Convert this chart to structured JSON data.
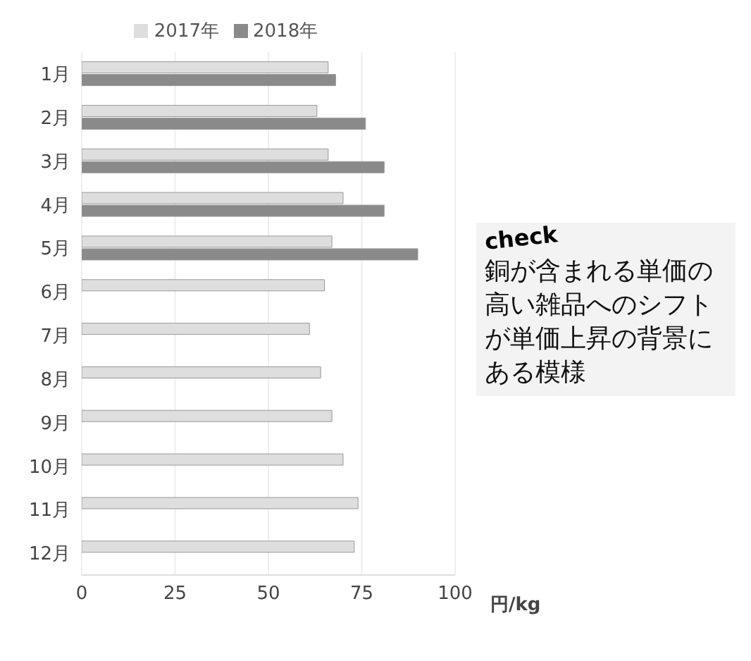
{
  "chart_data": {
    "type": "bar",
    "orientation": "horizontal",
    "categories": [
      "1月",
      "2月",
      "3月",
      "4月",
      "5月",
      "6月",
      "7月",
      "8月",
      "9月",
      "10月",
      "11月",
      "12月"
    ],
    "series": [
      {
        "name": "2017年",
        "color": "#dedede",
        "values": [
          66,
          63,
          66,
          70,
          67,
          65,
          61,
          64,
          67,
          70,
          74,
          73
        ]
      },
      {
        "name": "2018年",
        "color": "#8a8a8a",
        "values": [
          68,
          76,
          81,
          81,
          90,
          null,
          null,
          null,
          null,
          null,
          null,
          null
        ]
      }
    ],
    "xlim": [
      0,
      100
    ],
    "xticks": [
      0,
      25,
      50,
      75,
      100
    ],
    "xlabel": "円/kg",
    "grid": "x",
    "legend": "top",
    "annotations": [
      "check",
      "銅が含まれる単価の高い雑品へのシフトが単価上昇の背景にある模様"
    ]
  }
}
